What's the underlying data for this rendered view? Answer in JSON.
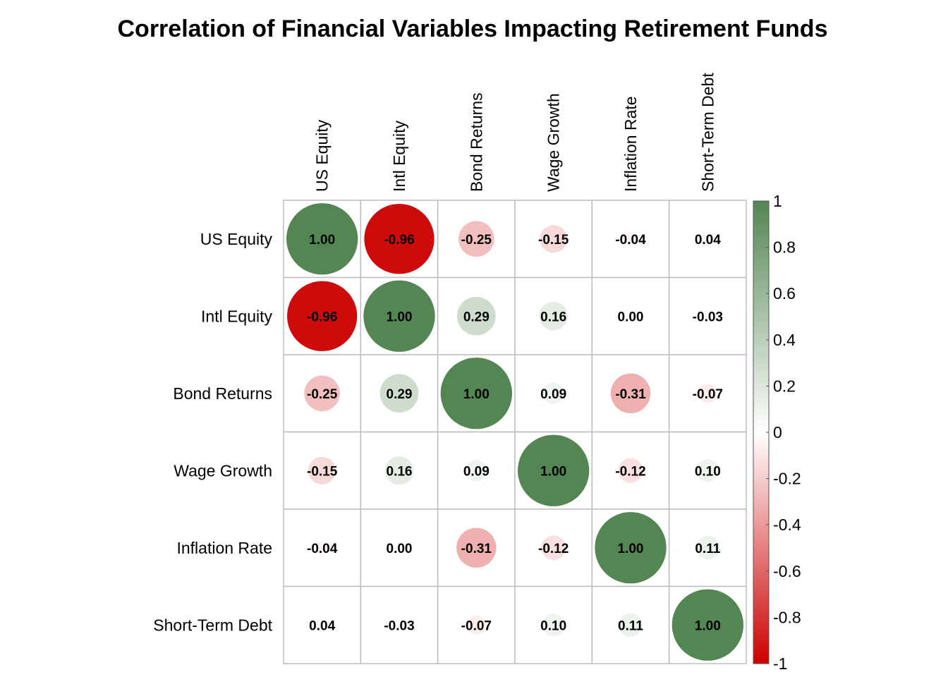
{
  "chart_data": {
    "type": "heatmap",
    "title": "Correlation of Financial Variables Impacting Retirement Funds",
    "variables": [
      "US Equity",
      "Intl Equity",
      "Bond Returns",
      "Wage Growth",
      "Inflation Rate",
      "Short-Term Debt"
    ],
    "matrix": [
      [
        1.0,
        -0.96,
        -0.25,
        -0.15,
        -0.04,
        0.04
      ],
      [
        -0.96,
        1.0,
        0.29,
        0.16,
        0.0,
        -0.03
      ],
      [
        -0.25,
        0.29,
        1.0,
        0.09,
        -0.31,
        -0.07
      ],
      [
        -0.15,
        0.16,
        0.09,
        1.0,
        -0.12,
        0.1
      ],
      [
        -0.04,
        0.0,
        -0.31,
        -0.12,
        1.0,
        0.11
      ],
      [
        0.04,
        -0.03,
        -0.07,
        0.1,
        0.11,
        1.0
      ]
    ],
    "value_range": [
      -1,
      1
    ],
    "legend_ticks": [
      "1",
      "0.8",
      "0.6",
      "0.4",
      "0.2",
      "0",
      "-0.2",
      "-0.4",
      "-0.6",
      "-0.8",
      "-1"
    ],
    "legend_placement": "right",
    "colors": {
      "negative": "#cc0000",
      "neutral": "#ffffff",
      "positive": "#548654"
    },
    "grid": true
  }
}
